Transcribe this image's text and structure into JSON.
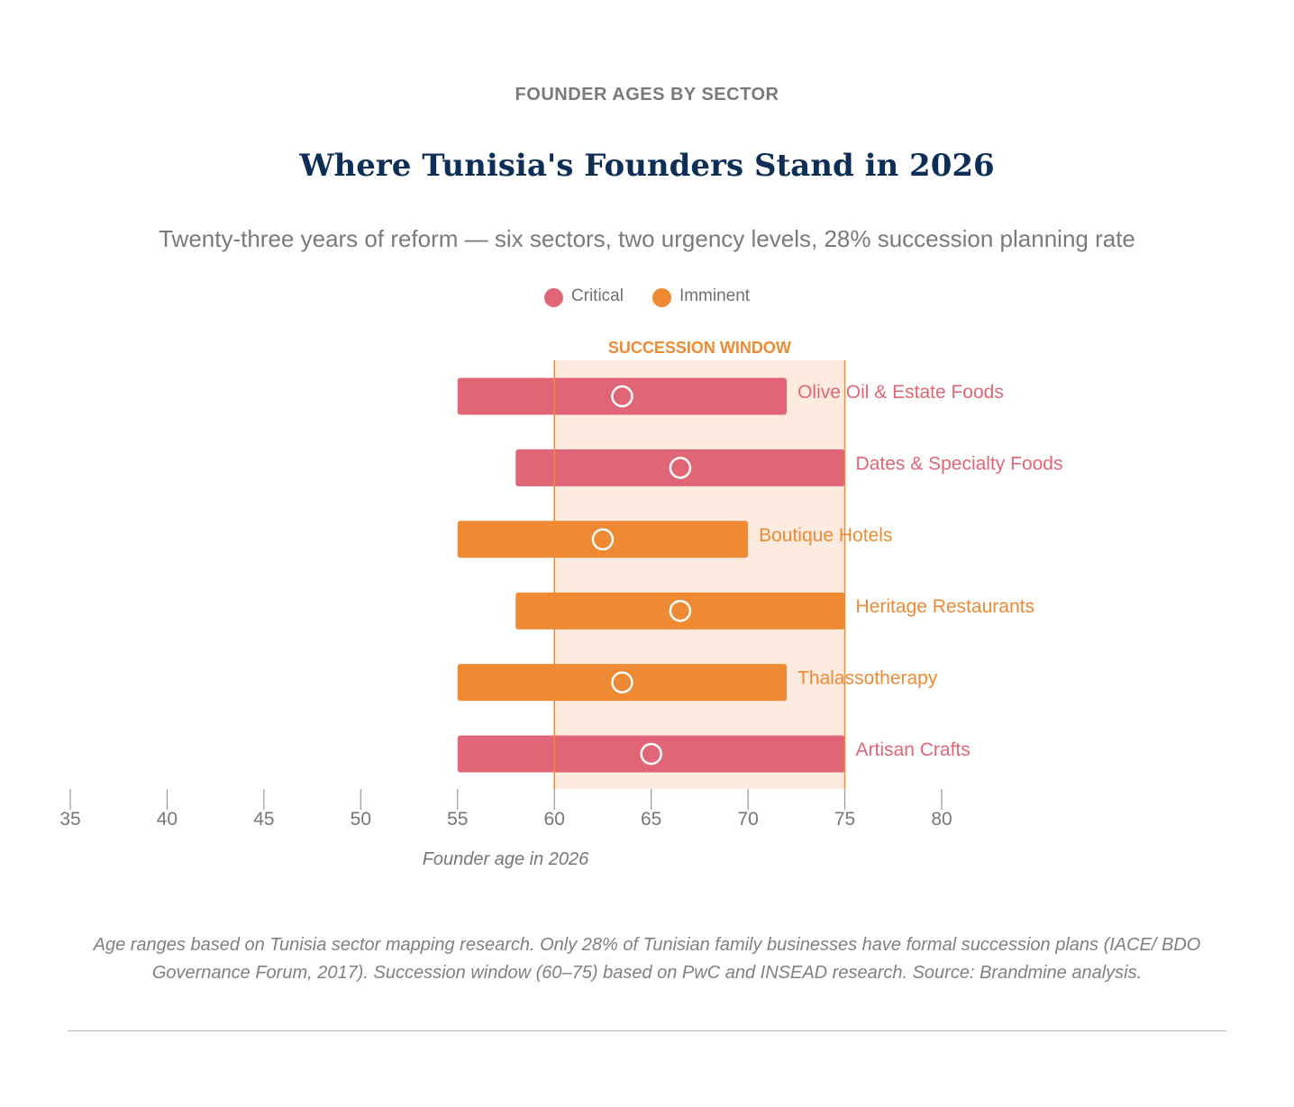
{
  "header": {
    "eyebrow": "FOUNDER AGES BY SECTOR",
    "title": "Where Tunisia's Founders Stand in 2026",
    "subtitle": "Twenty-three years of reform — six sectors, two urgency levels, 28% succession planning rate"
  },
  "legend": [
    {
      "label": "Critical",
      "color": "#e06677"
    },
    {
      "label": "Imminent",
      "color": "#ee8a33"
    }
  ],
  "colors": {
    "critical": "#e06677",
    "imminent": "#ee8a33",
    "window_fill": "#fdebe0",
    "window_line": "#ee8a33",
    "axis": "#999999",
    "axis_text": "#777777"
  },
  "chart_data": {
    "type": "range-bar",
    "xlabel": "Founder age in 2026",
    "xlim": [
      35,
      80
    ],
    "xticks": [
      35,
      40,
      45,
      50,
      55,
      60,
      65,
      70,
      75,
      80
    ],
    "succession_window": {
      "label": "SUCCESSION WINDOW",
      "start": 60,
      "end": 75
    },
    "series": [
      {
        "name": "Olive Oil & Estate Foods",
        "urgency": "Critical",
        "min": 55,
        "max": 72,
        "median": 63.5
      },
      {
        "name": "Dates & Specialty Foods",
        "urgency": "Critical",
        "min": 58,
        "max": 75,
        "median": 66.5
      },
      {
        "name": "Boutique Hotels",
        "urgency": "Imminent",
        "min": 55,
        "max": 70,
        "median": 62.5
      },
      {
        "name": "Heritage Restaurants",
        "urgency": "Imminent",
        "min": 58,
        "max": 75,
        "median": 66.5
      },
      {
        "name": "Thalassotherapy",
        "urgency": "Imminent",
        "min": 55,
        "max": 72,
        "median": 63.5
      },
      {
        "name": "Artisan Crafts",
        "urgency": "Critical",
        "min": 55,
        "max": 75,
        "median": 65
      }
    ]
  },
  "footnote": "Age ranges based on Tunisia sector mapping research. Only 28% of Tunisian family businesses have formal succession plans (IACE/ BDO Governance Forum, 2017). Succession window (60–75) based on PwC and INSEAD research. Source: Brandmine analysis."
}
